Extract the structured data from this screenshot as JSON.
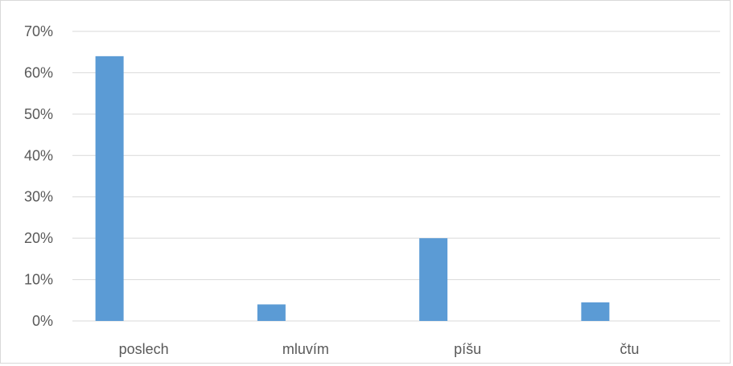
{
  "chart_data": {
    "type": "bar",
    "categories": [
      "poslech",
      "mluvím",
      "píšu",
      "čtu"
    ],
    "series": [
      {
        "values": [
          0.64,
          0.04,
          0.2,
          0.045
        ]
      }
    ],
    "title": "",
    "xlabel": "",
    "ylabel": "",
    "ylim": [
      0,
      0.7
    ],
    "yticks": [
      "0%",
      "10%",
      "20%",
      "30%",
      "40%",
      "50%",
      "60%",
      "70%"
    ],
    "grid": true,
    "legend": "none",
    "colors": {
      "bar": "#5b9bd5",
      "grid": "#d9d9d9",
      "text": "#595959"
    }
  }
}
